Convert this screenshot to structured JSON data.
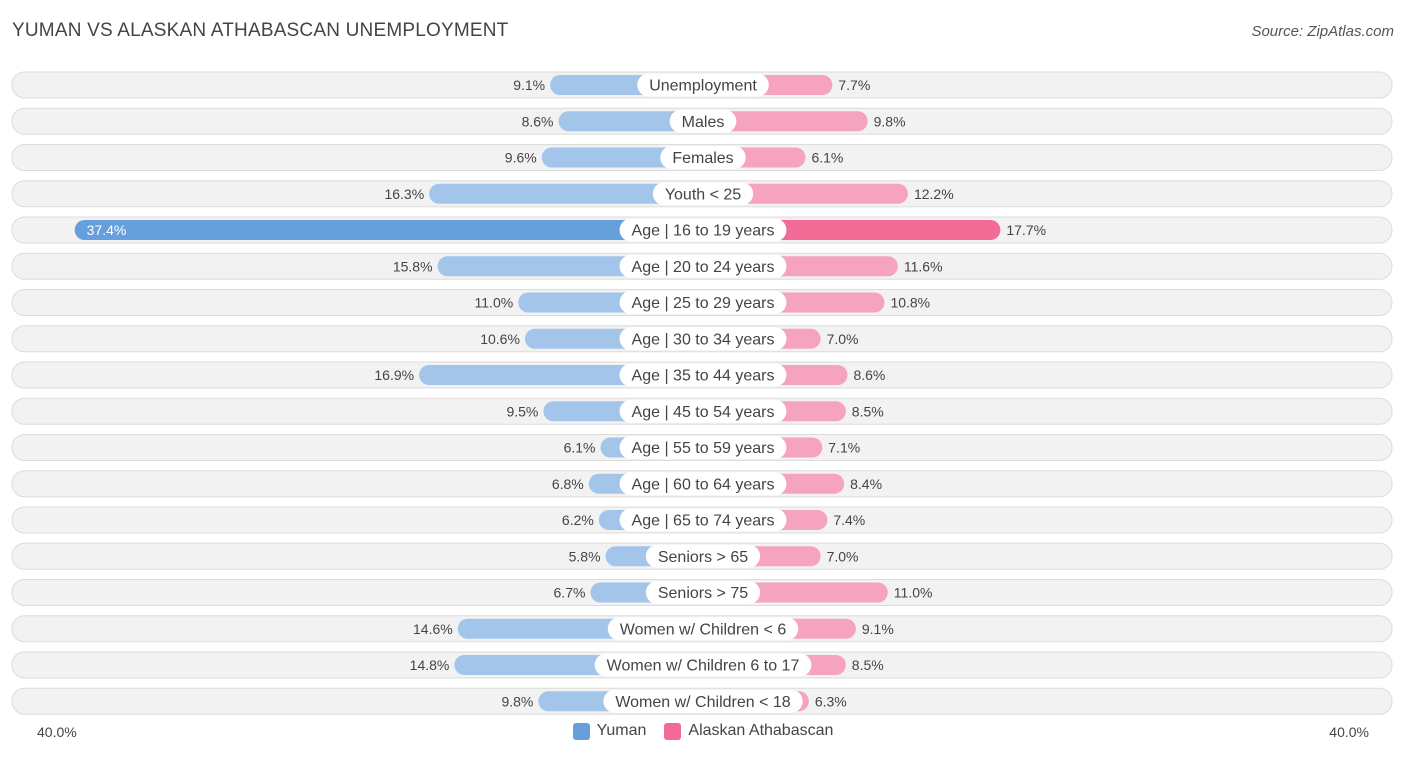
{
  "title": "YUMAN VS ALASKAN ATHABASCAN UNEMPLOYMENT",
  "source": "Source: ZipAtlas.com",
  "colors": {
    "yuman": "#a4c5ea",
    "yuman_strong": "#669fdc",
    "athabascan": "#f5a3bf",
    "athabascan_strong": "#f26b97",
    "row_bg": "#f2f2f2",
    "row_border": "#dcdcdc"
  },
  "chart_data": {
    "type": "bar",
    "orientation": "horizontal-diverging",
    "title": "YUMAN VS ALASKAN ATHABASCAN UNEMPLOYMENT",
    "axis_max": 40.0,
    "axis_left_label": "40.0%",
    "axis_right_label": "40.0%",
    "legend_position": "bottom-center",
    "categories": [
      "Unemployment",
      "Males",
      "Females",
      "Youth < 25",
      "Age | 16 to 19 years",
      "Age | 20 to 24 years",
      "Age | 25 to 29 years",
      "Age | 30 to 34 years",
      "Age | 35 to 44 years",
      "Age | 45 to 54 years",
      "Age | 55 to 59 years",
      "Age | 60 to 64 years",
      "Age | 65 to 74 years",
      "Seniors > 65",
      "Seniors > 75",
      "Women w/ Children < 6",
      "Women w/ Children 6 to 17",
      "Women w/ Children < 18"
    ],
    "series": [
      {
        "name": "Yuman",
        "values": [
          9.1,
          8.6,
          9.6,
          16.3,
          37.4,
          15.8,
          11.0,
          10.6,
          16.9,
          9.5,
          6.1,
          6.8,
          6.2,
          5.8,
          6.7,
          14.6,
          14.8,
          9.8
        ],
        "labels": [
          "9.1%",
          "8.6%",
          "9.6%",
          "16.3%",
          "37.4%",
          "15.8%",
          "11.0%",
          "10.6%",
          "16.9%",
          "9.5%",
          "6.1%",
          "6.8%",
          "6.2%",
          "5.8%",
          "6.7%",
          "14.6%",
          "14.8%",
          "9.8%"
        ]
      },
      {
        "name": "Alaskan Athabascan",
        "values": [
          7.7,
          9.8,
          6.1,
          12.2,
          17.7,
          11.6,
          10.8,
          7.0,
          8.6,
          8.5,
          7.1,
          8.4,
          7.4,
          7.0,
          11.0,
          9.1,
          8.5,
          6.3
        ],
        "labels": [
          "7.7%",
          "9.8%",
          "6.1%",
          "12.2%",
          "17.7%",
          "11.6%",
          "10.8%",
          "7.0%",
          "8.6%",
          "8.5%",
          "7.1%",
          "8.4%",
          "7.4%",
          "7.0%",
          "11.0%",
          "9.1%",
          "8.5%",
          "6.3%"
        ]
      }
    ]
  },
  "legend": {
    "yuman_label": "Yuman",
    "athabascan_label": "Alaskan Athabascan"
  }
}
